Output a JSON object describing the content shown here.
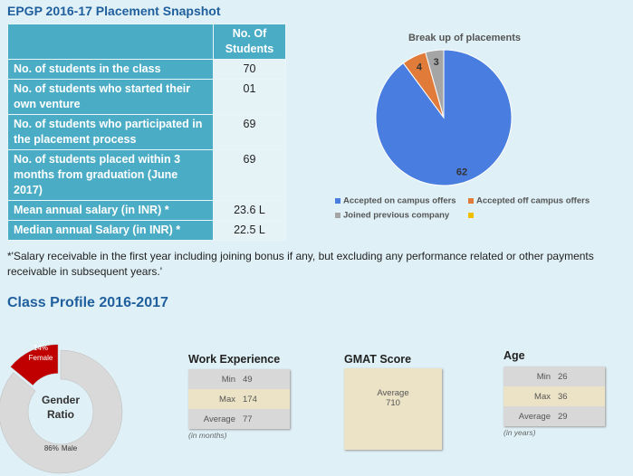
{
  "header": {
    "title": "EPGP 2016-17 Placement Snapshot"
  },
  "table": {
    "column_header": "No. Of Students",
    "rows": [
      [
        "No. of students in the class",
        "70"
      ],
      [
        "No. of students who started their own venture",
        "01"
      ],
      [
        "No. of students who participated in the placement process",
        "69"
      ],
      [
        "No. of students placed within 3 months from graduation (June 2017)",
        "69"
      ],
      [
        "Mean annual salary (in INR) *",
        "23.6 L"
      ],
      [
        "Median annual Salary (in INR) *",
        "22.5 L"
      ]
    ]
  },
  "footnote": "*'Salary receivable in the first year including joining bonus if any, but excluding any performance related or other payments receivable in subsequent years.'",
  "section_title": "Class Profile 2016-2017",
  "chart_data": [
    {
      "type": "pie",
      "title": "Break up of placements",
      "categories": [
        "Accepted on campus offers",
        "Accepted off campus offers",
        "Joined previous company",
        null
      ],
      "values": [
        62,
        4,
        3,
        0
      ],
      "colors": [
        "#4a7de0",
        "#e07b39",
        "#a5a5a5",
        "#f0c000"
      ],
      "legend": "bottom"
    },
    {
      "type": "donut",
      "title": "Gender Ratio",
      "categories": [
        "Female",
        "Male"
      ],
      "values": [
        14,
        86
      ],
      "value_labels": [
        "14%",
        "86%"
      ],
      "colors": [
        "#c00000",
        "#d9d9d9"
      ]
    }
  ],
  "profiles": [
    {
      "title": "Work Experience",
      "rows": [
        [
          "Min",
          "49"
        ],
        [
          "Max",
          "174"
        ],
        [
          "Average",
          "77"
        ]
      ],
      "note": "(in months)"
    },
    {
      "title": "GMAT Score",
      "rows": [
        [
          "Average",
          "710"
        ]
      ]
    },
    {
      "title": "Age",
      "rows": [
        [
          "Min",
          "26"
        ],
        [
          "Max",
          "36"
        ],
        [
          "Average",
          "29"
        ]
      ],
      "note": "(in years)"
    }
  ]
}
